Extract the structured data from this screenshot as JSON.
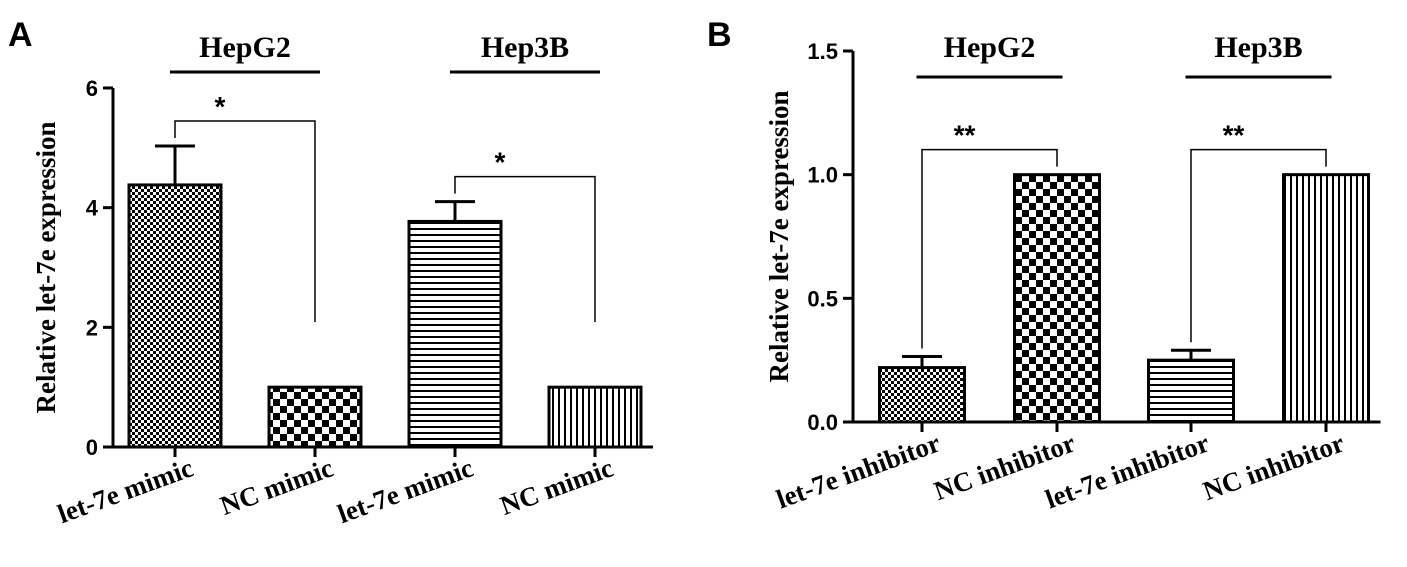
{
  "chart_data": [
    {
      "panel": "A",
      "type": "bar",
      "ylabel": "Relative let-7e expression",
      "ylim": [
        0,
        6
      ],
      "yticks": [
        0,
        2,
        4,
        6
      ],
      "categories": [
        "let-7e mimic",
        "NC mimic",
        "let-7e mimic",
        "NC mimic"
      ],
      "values": [
        4.38,
        1.0,
        3.77,
        1.0
      ],
      "errors": [
        0.65,
        0,
        0.33,
        0
      ],
      "patterns": [
        "dots",
        "checker",
        "hstripes",
        "vstripes"
      ],
      "groups": [
        {
          "label": "HepG2",
          "bars": [
            0,
            1
          ]
        },
        {
          "label": "Hep3B",
          "bars": [
            2,
            3
          ]
        }
      ],
      "significance": [
        {
          "bars": [
            0,
            1
          ],
          "text": "*"
        },
        {
          "bars": [
            2,
            3
          ],
          "text": "*"
        }
      ]
    },
    {
      "panel": "B",
      "type": "bar",
      "ylabel": "Relative let-7e expression",
      "ylim": [
        0,
        1.5
      ],
      "yticks": [
        "0.0",
        "0.5",
        "1.0",
        "1.5"
      ],
      "categories": [
        "let-7e inhibitor",
        "NC inhibitor",
        "let-7e inhibitor",
        "NC inhibitor"
      ],
      "values": [
        0.22,
        1.0,
        0.25,
        1.0
      ],
      "errors": [
        0.045,
        0,
        0.04,
        0
      ],
      "patterns": [
        "dots",
        "checker",
        "hstripes",
        "vstripes"
      ],
      "groups": [
        {
          "label": "HepG2",
          "bars": [
            0,
            1
          ]
        },
        {
          "label": "Hep3B",
          "bars": [
            2,
            3
          ]
        }
      ],
      "significance": [
        {
          "bars": [
            0,
            1
          ],
          "text": "**"
        },
        {
          "bars": [
            2,
            3
          ],
          "text": "**"
        }
      ]
    }
  ]
}
